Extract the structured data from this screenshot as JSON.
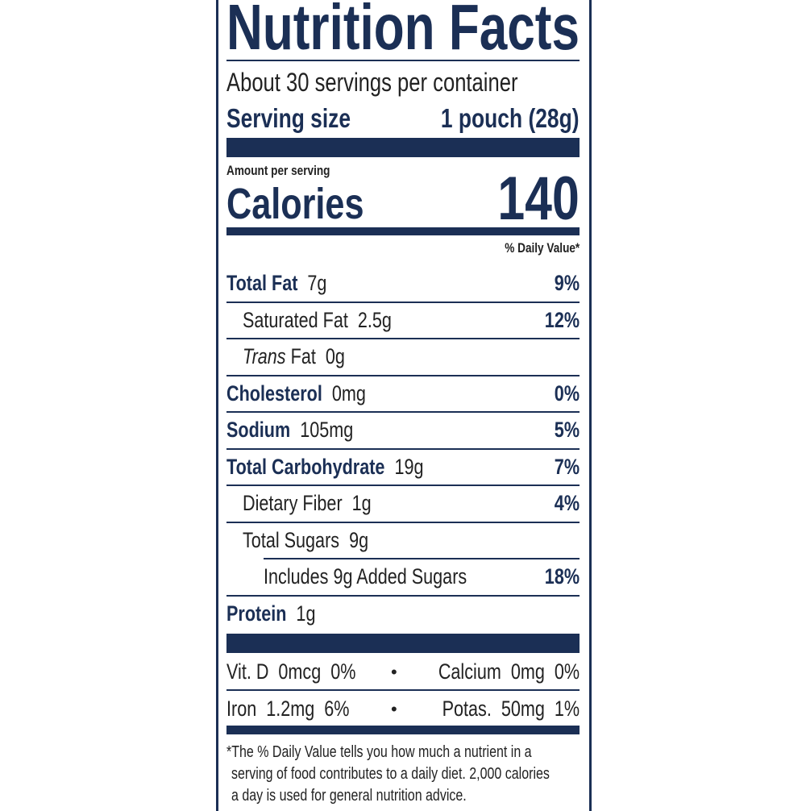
{
  "title": "Nutrition Facts",
  "servings_per_container": "About 30 servings per container",
  "serving_size": {
    "label": "Serving size",
    "value": "1 pouch (28g)"
  },
  "amount_per_serving": "Amount per serving",
  "calories": {
    "label": "Calories",
    "value": "140"
  },
  "daily_value_header": "% Daily Value*",
  "nutrients": [
    {
      "name": "Total Fat",
      "amount": "7g",
      "dv": "9%"
    },
    {
      "name": "Saturated Fat",
      "amount": "2.5g",
      "dv": "12%"
    },
    {
      "name_italic": "Trans",
      "name": "Fat",
      "amount": "0g",
      "dv": ""
    },
    {
      "name": "Cholesterol",
      "amount": "0mg",
      "dv": "0%"
    },
    {
      "name": "Sodium",
      "amount": "105mg",
      "dv": "5%"
    },
    {
      "name": "Total Carbohydrate",
      "amount": "19g",
      "dv": "7%"
    },
    {
      "name": "Dietary Fiber",
      "amount": "1g",
      "dv": "4%"
    },
    {
      "name": "Total Sugars",
      "amount": "9g",
      "dv": ""
    },
    {
      "name": "Includes 9g Added Sugars",
      "amount": "",
      "dv": "18%"
    },
    {
      "name": "Protein",
      "amount": "1g",
      "dv": ""
    }
  ],
  "micronutrients": [
    {
      "left": "Vit. D  0mcg  0%",
      "bullet": "•",
      "right": "Calcium  0mg  0%"
    },
    {
      "left": "Iron  1.2mg  6%",
      "bullet": "•",
      "right": "Potas.  50mg  1%"
    }
  ],
  "footnote": [
    "*The % Daily Value tells you how much a nutrient in a",
    "serving of food contributes to a daily diet. 2,000 calories",
    "a day is used for general nutrition advice."
  ],
  "colors": {
    "ink": "#1b2f55"
  }
}
